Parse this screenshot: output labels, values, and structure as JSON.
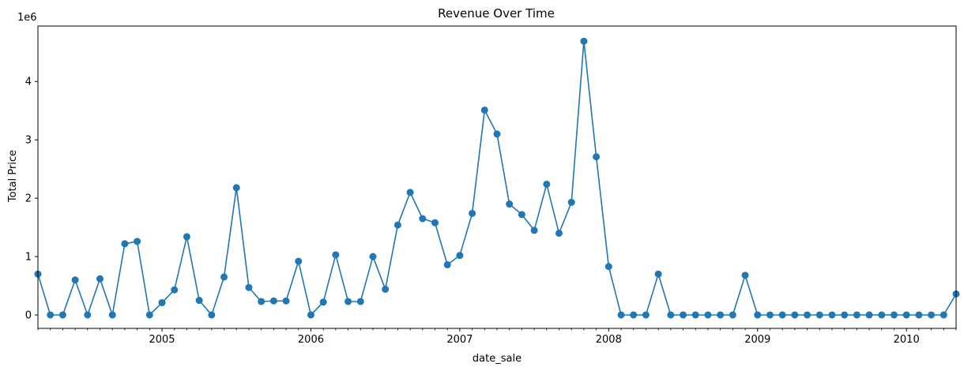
{
  "chart_data": {
    "type": "line",
    "title": "Revenue Over Time",
    "xlabel": "date_sale",
    "ylabel": "Total Price",
    "y_offset_text": "1e6",
    "y_scale": 1000000,
    "ylim": [
      -230000,
      4950000
    ],
    "xlim": [
      "2004-03",
      "2010-05"
    ],
    "grid": false,
    "line_color": "#1f77b4",
    "marker": "circle",
    "year_ticks": [
      "2005",
      "2006",
      "2007",
      "2008",
      "2009",
      "2010"
    ],
    "y_ticks": [
      0,
      1,
      2,
      3,
      4
    ],
    "x": [
      "2004-03",
      "2004-04",
      "2004-05",
      "2004-06",
      "2004-07",
      "2004-08",
      "2004-09",
      "2004-10",
      "2004-11",
      "2004-12",
      "2005-01",
      "2005-02",
      "2005-03",
      "2005-04",
      "2005-05",
      "2005-06",
      "2005-07",
      "2005-08",
      "2005-09",
      "2005-10",
      "2005-11",
      "2005-12",
      "2006-01",
      "2006-02",
      "2006-03",
      "2006-04",
      "2006-05",
      "2006-06",
      "2006-07",
      "2006-08",
      "2006-09",
      "2006-10",
      "2006-11",
      "2006-12",
      "2007-01",
      "2007-02",
      "2007-03",
      "2007-04",
      "2007-05",
      "2007-06",
      "2007-07",
      "2007-08",
      "2007-09",
      "2007-10",
      "2007-11",
      "2007-12",
      "2008-01",
      "2008-02",
      "2008-03",
      "2008-04",
      "2008-05",
      "2008-06",
      "2008-07",
      "2008-08",
      "2008-09",
      "2008-10",
      "2008-11",
      "2008-12",
      "2009-01",
      "2009-02",
      "2009-03",
      "2009-04",
      "2009-05",
      "2009-06",
      "2009-07",
      "2009-08",
      "2009-09",
      "2009-10",
      "2009-11",
      "2009-12",
      "2010-01",
      "2010-02",
      "2010-03",
      "2010-04",
      "2010-05"
    ],
    "values": [
      700000,
      0,
      0,
      600000,
      0,
      620000,
      0,
      1220000,
      1260000,
      0,
      210000,
      430000,
      1340000,
      250000,
      0,
      650000,
      2180000,
      470000,
      230000,
      240000,
      240000,
      920000,
      0,
      220000,
      1030000,
      230000,
      230000,
      1000000,
      440000,
      1540000,
      2100000,
      1650000,
      1580000,
      860000,
      1020000,
      1740000,
      3510000,
      3100000,
      1900000,
      1720000,
      1450000,
      2240000,
      1400000,
      1930000,
      4690000,
      2710000,
      830000,
      0,
      0,
      0,
      700000,
      0,
      0,
      0,
      0,
      0,
      0,
      680000,
      0,
      0,
      0,
      0,
      0,
      0,
      0,
      0,
      0,
      0,
      0,
      0,
      0,
      0,
      0,
      0,
      360000
    ]
  }
}
